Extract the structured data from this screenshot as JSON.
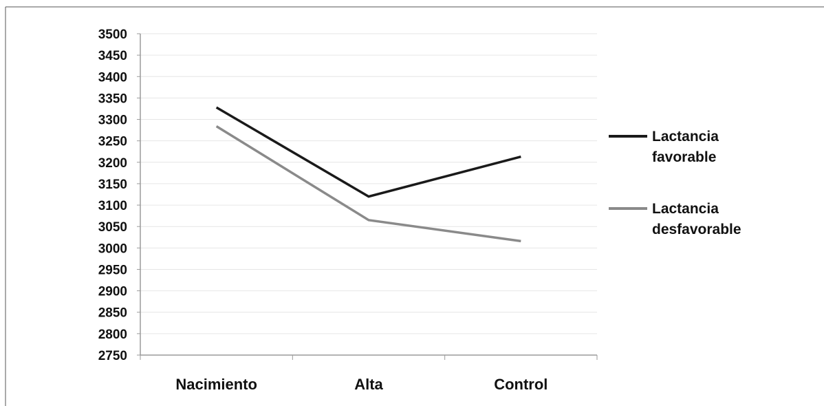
{
  "chart_data": {
    "type": "line",
    "title": "",
    "xlabel": "",
    "ylabel": "",
    "categories": [
      "Nacimiento",
      "Alta",
      "Control"
    ],
    "yticks": [
      "3500",
      "3450",
      "3400",
      "3350",
      "3300",
      "3250",
      "3200",
      "3150",
      "3100",
      "3050",
      "3000",
      "2950",
      "2900",
      "2850",
      "2800",
      "2750"
    ],
    "ylim": [
      2750,
      3500
    ],
    "grid": true,
    "legend_position": "right",
    "series": [
      {
        "name": "Lactancia favorable",
        "name_lines": [
          "Lactancia",
          "favorable"
        ],
        "values": [
          3328,
          3120,
          3213
        ],
        "color": "#1a1a1a"
      },
      {
        "name": "Lactancia desfavorable",
        "name_lines": [
          "Lactancia",
          "desfavorable"
        ],
        "values": [
          3284,
          3065,
          3016
        ],
        "color": "#8a8a8a"
      }
    ]
  }
}
